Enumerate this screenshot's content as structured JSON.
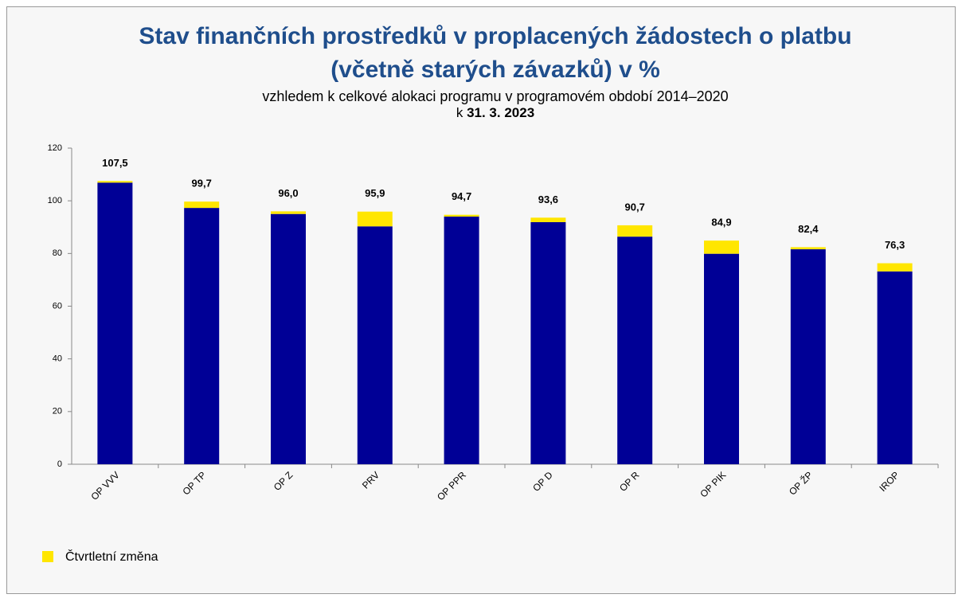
{
  "chart_data": {
    "type": "stacked_bar",
    "title": "Stav finančních prostředků v proplacených žádostech o platbu",
    "title_line2": "(včetně starých závazků) v %",
    "subtitle": "vzhledem k celkové alokaci programu v programovém období 2014–2020",
    "date_prefix": "k",
    "date": "31. 3. 2023",
    "categories": [
      "OP VVV",
      "OP TP",
      "OP Z",
      "PRV",
      "OP PPR",
      "OP D",
      "OP R",
      "OP PIK",
      "OP ŽP",
      "IROP"
    ],
    "series": [
      {
        "color": "#000096",
        "values": [
          106.9,
          97.3,
          95.0,
          90.3,
          94.0,
          91.9,
          86.4,
          79.9,
          81.6,
          73.2
        ]
      },
      {
        "name": "Čtvrtletní změna",
        "color": "#ffe600",
        "values": [
          0.6,
          2.4,
          1.0,
          5.6,
          0.7,
          1.7,
          4.3,
          5.0,
          0.8,
          3.1
        ]
      }
    ],
    "totals": [
      107.5,
      99.7,
      96.0,
      95.9,
      94.7,
      93.6,
      90.7,
      84.9,
      82.4,
      76.3
    ],
    "total_labels": [
      "107,5",
      "99,7",
      "96,0",
      "95,9",
      "94,7",
      "93,6",
      "90,7",
      "84,9",
      "82,4",
      "76,3"
    ],
    "ylim": [
      0,
      120
    ],
    "yticks": [
      0,
      20,
      40,
      60,
      80,
      100,
      120
    ],
    "grid": false,
    "legend": "bottom-left"
  }
}
